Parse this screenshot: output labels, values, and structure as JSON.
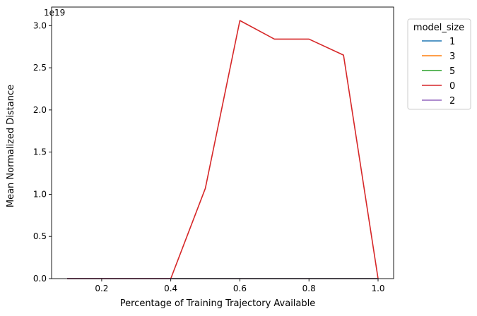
{
  "chart_data": {
    "type": "line",
    "xlabel": "Percentage of Training Trajectory Available",
    "ylabel": "Mean Normalized Distance",
    "offset_label": "1e19",
    "xlim": [
      0.055,
      1.045
    ],
    "ylim": [
      0,
      3.22
    ],
    "x_ticks": [
      0.2,
      0.4,
      0.6,
      0.8,
      1.0
    ],
    "x_tick_labels": [
      "0.2",
      "0.4",
      "0.6",
      "0.8",
      "1.0"
    ],
    "y_ticks": [
      0.0,
      0.5,
      1.0,
      1.5,
      2.0,
      2.5,
      3.0
    ],
    "y_tick_labels": [
      "0.0",
      "0.5",
      "1.0",
      "1.5",
      "2.0",
      "2.5",
      "3.0"
    ],
    "grid": false,
    "legend": {
      "title": "model_size",
      "placement": "outside-top-right"
    },
    "x": [
      0.1,
      0.2,
      0.3,
      0.4,
      0.5,
      0.6,
      0.7,
      0.8,
      0.9,
      1.0
    ],
    "series": [
      {
        "name": "1",
        "color": "#1f77b4",
        "values": [
          0,
          0,
          0,
          0,
          0,
          0,
          0,
          0,
          0,
          0
        ]
      },
      {
        "name": "3",
        "color": "#ff7f0e",
        "values": [
          0,
          0,
          0,
          0,
          0,
          0,
          0,
          0,
          0,
          0
        ]
      },
      {
        "name": "5",
        "color": "#2ca02c",
        "values": [
          0,
          0,
          0,
          0,
          0,
          0,
          0,
          0,
          0,
          0
        ]
      },
      {
        "name": "0",
        "color": "#d62728",
        "values": [
          0,
          0,
          0,
          0,
          1.07,
          3.06,
          2.84,
          2.84,
          2.65,
          0
        ]
      },
      {
        "name": "2",
        "color": "#9467bd",
        "values": [
          0,
          0,
          0,
          0,
          0,
          0,
          0,
          0,
          0,
          0
        ]
      }
    ]
  }
}
